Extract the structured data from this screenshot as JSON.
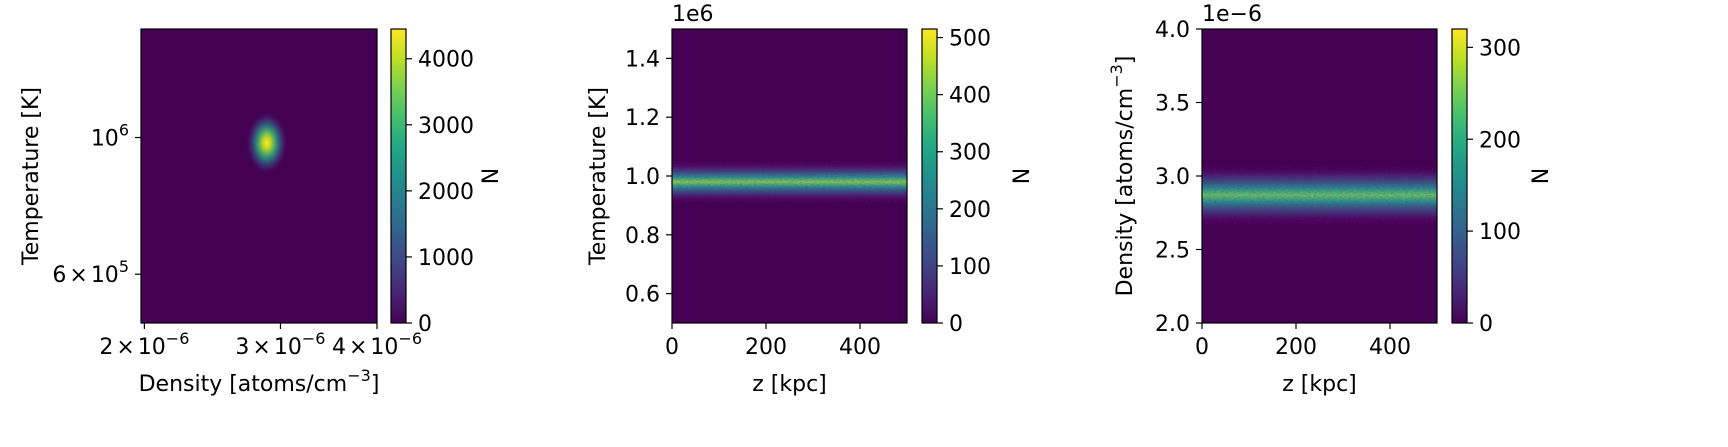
{
  "chart_data": [
    {
      "type": "heatmap",
      "xlabel": "Density [atoms/cm",
      "xlabel_sup": "−3",
      "xlabel_end": "]",
      "ylabel": "Temperature [K]",
      "xscale": "log",
      "yscale": "log",
      "xlim": [
        1.98e-06,
        4e-06
      ],
      "ylim": [
        500000.0,
        1500000.0
      ],
      "xticks": [
        {
          "value": 2e-06,
          "mant": "2",
          "times": "×",
          "base": "10",
          "exp": "−6"
        },
        {
          "value": 3e-06,
          "mant": "3",
          "times": "×",
          "base": "10",
          "exp": "−6"
        },
        {
          "value": 4e-06,
          "mant": "4",
          "times": "×",
          "base": "10",
          "exp": "−6"
        }
      ],
      "yticks": [
        {
          "value": 1000000.0,
          "mant": "",
          "times": "",
          "base": "10",
          "exp": "6"
        },
        {
          "value": 600000.0,
          "mant": "6",
          "times": "×",
          "base": "10",
          "exp": "5"
        }
      ],
      "peak": {
        "x": 2.88e-06,
        "y": 980000.0,
        "sx": 7e-08,
        "sy": 45000.0
      },
      "colorbar": {
        "label": "N",
        "min": 0,
        "max": 4450,
        "ticks": [
          "0",
          "1000",
          "2000",
          "3000",
          "4000"
        ],
        "tick_values": [
          0,
          1000,
          2000,
          3000,
          4000
        ]
      }
    },
    {
      "type": "heatmap",
      "xlabel": "z [kpc]",
      "ylabel": "Temperature [K]",
      "offset_text": "1e6",
      "xlim": [
        0,
        500
      ],
      "ylim": [
        0.5,
        1.5
      ],
      "xticks": [
        "0",
        "200",
        "400"
      ],
      "xtick_values": [
        0,
        200,
        400
      ],
      "yticks": [
        "0.6",
        "0.8",
        "1.0",
        "1.2",
        "1.4"
      ],
      "ytick_values": [
        0.6,
        0.8,
        1.0,
        1.2,
        1.4
      ],
      "band": {
        "center": 0.98,
        "sigma": 0.027
      },
      "colorbar": {
        "label": "N",
        "min": 0,
        "max": 515,
        "ticks": [
          "0",
          "100",
          "200",
          "300",
          "400",
          "500"
        ],
        "tick_values": [
          0,
          100,
          200,
          300,
          400,
          500
        ]
      }
    },
    {
      "type": "heatmap",
      "xlabel": "z [kpc]",
      "ylabel": "Density [atoms/cm",
      "ylabel_sup": "−3",
      "ylabel_end": "]",
      "offset_text": "1e−6",
      "xlim": [
        0,
        500
      ],
      "ylim": [
        2.0,
        4.0
      ],
      "xticks": [
        "0",
        "200",
        "400"
      ],
      "xtick_values": [
        0,
        200,
        400
      ],
      "yticks": [
        "2.0",
        "2.5",
        "3.0",
        "3.5",
        "4.0"
      ],
      "ytick_values": [
        2.0,
        2.5,
        3.0,
        3.5,
        4.0
      ],
      "band": {
        "center": 2.87,
        "sigma": 0.075
      },
      "colorbar": {
        "label": "N",
        "min": 0,
        "max": 320,
        "ticks": [
          "0",
          "100",
          "200",
          "300"
        ],
        "tick_values": [
          0,
          100,
          200,
          300
        ]
      }
    }
  ]
}
